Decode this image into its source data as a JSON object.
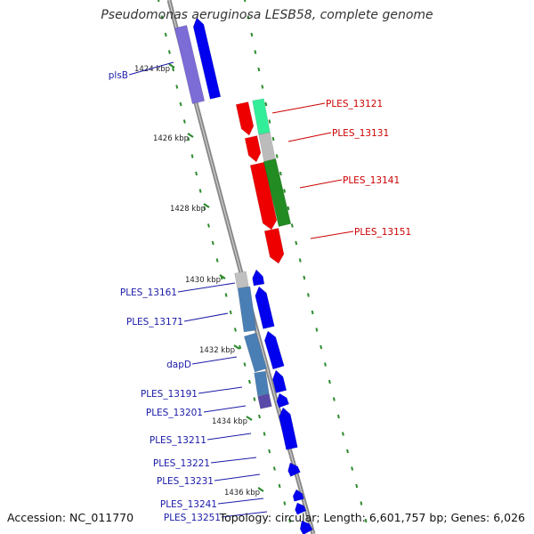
{
  "title": "Pseudomonas aeruginosa LESB58, complete genome",
  "footer": {
    "accession_label": "Accession:",
    "accession": "NC_011770",
    "topology_label": "Topology:",
    "topology": "circular",
    "length_label": "Length:",
    "length": "6,601,757 bp",
    "genes_label": "Genes:",
    "genes": "6,026"
  },
  "colors": {
    "backbone": "#888888",
    "ticks": "#2e8b2e",
    "reverse_label": "#1a1aa8",
    "forward_label": "#cc0000",
    "cds_reverse": "#0000ee",
    "cds_forward": "#ee0000",
    "operon_forward": [
      "#33ee99",
      "#bbbbbb",
      "#228b22"
    ],
    "operon_reverse": [
      "#c0c0c0",
      "#4a7fb5",
      "#5a4aa8"
    ]
  },
  "scale_labels": [
    "1424 kbp",
    "1426 kbp",
    "1428 kbp",
    "1430 kbp",
    "1432 kbp",
    "1434 kbp",
    "1436 kbp"
  ],
  "forward_genes": [
    "PLES_13121",
    "PLES_13131",
    "PLES_13141",
    "PLES_13151"
  ],
  "reverse_genes": [
    "plsB",
    "PLES_13161",
    "PLES_13171",
    "dapD",
    "PLES_13191",
    "PLES_13201",
    "PLES_13211",
    "PLES_13221",
    "PLES_13231",
    "PLES_13241",
    "PLES_13251"
  ]
}
